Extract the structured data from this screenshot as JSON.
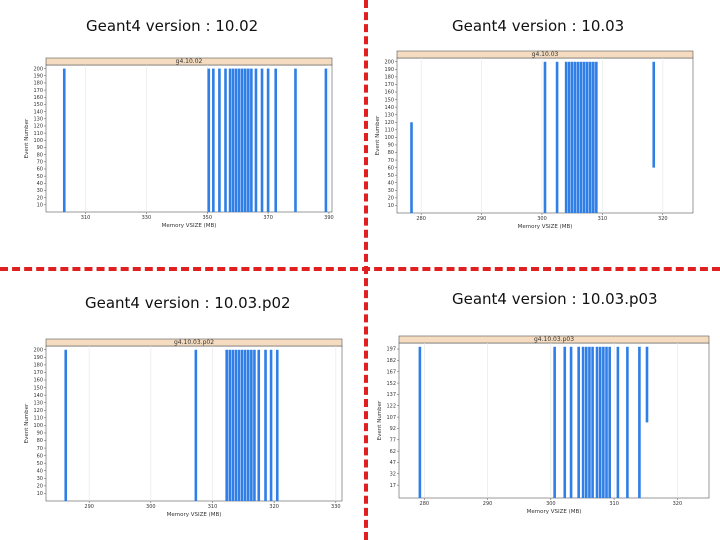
{
  "titles": {
    "tl": "Geant4 version : 10.02",
    "tr": "Geant4 version : 10.03",
    "bl": "Geant4 version : 10.03.p02",
    "br": "Geant4 version : 10.03.p03"
  },
  "colors": {
    "bar": "#2f7fe6",
    "strip": "#f5dcc0",
    "grid": "#e6e6e6",
    "divider": "#e02020"
  },
  "chart_data": [
    {
      "type": "bar",
      "strip_label": "g4.10.02",
      "xlabel": "Memory VSIZE (MB)",
      "ylabel": "Event Number",
      "xlim": [
        297,
        391
      ],
      "xticks": [
        310,
        330,
        350,
        370,
        390
      ],
      "ylim": [
        0,
        205
      ],
      "yticks": [
        10,
        20,
        30,
        40,
        50,
        60,
        70,
        80,
        90,
        100,
        110,
        120,
        130,
        140,
        150,
        160,
        170,
        180,
        190,
        200
      ],
      "grid": true,
      "segments": [
        {
          "x": 303,
          "y0": 0,
          "y1": 200
        },
        {
          "x": 350.5,
          "y0": 0,
          "y1": 200
        },
        {
          "x": 352,
          "y0": 0,
          "y1": 200
        },
        {
          "x": 354,
          "y0": 0,
          "y1": 200
        },
        {
          "x": 356,
          "y0": 0,
          "y1": 200
        },
        {
          "x": 357.5,
          "y0": 0,
          "y1": 200
        },
        {
          "x": 358.5,
          "y0": 0,
          "y1": 200
        },
        {
          "x": 359.5,
          "y0": 0,
          "y1": 200
        },
        {
          "x": 360.5,
          "y0": 0,
          "y1": 200
        },
        {
          "x": 361.5,
          "y0": 0,
          "y1": 200
        },
        {
          "x": 362.5,
          "y0": 0,
          "y1": 200
        },
        {
          "x": 363.5,
          "y0": 0,
          "y1": 200
        },
        {
          "x": 364.5,
          "y0": 0,
          "y1": 200
        },
        {
          "x": 366,
          "y0": 0,
          "y1": 200
        },
        {
          "x": 368,
          "y0": 0,
          "y1": 200
        },
        {
          "x": 370,
          "y0": 0,
          "y1": 200
        },
        {
          "x": 372.5,
          "y0": 0,
          "y1": 200
        },
        {
          "x": 379,
          "y0": 0,
          "y1": 200
        },
        {
          "x": 389,
          "y0": 0,
          "y1": 200
        }
      ]
    },
    {
      "type": "bar",
      "strip_label": "g4.10.03",
      "xlabel": "Memory VSIZE (MB)",
      "ylabel": "Event Number",
      "xlim": [
        276,
        325
      ],
      "xticks": [
        280,
        290,
        300,
        310,
        320
      ],
      "ylim": [
        0,
        205
      ],
      "yticks": [
        10,
        20,
        30,
        40,
        50,
        60,
        70,
        80,
        90,
        100,
        110,
        120,
        130,
        140,
        150,
        160,
        170,
        180,
        190,
        200
      ],
      "grid": true,
      "segments": [
        {
          "x": 278.4,
          "y0": 0,
          "y1": 120
        },
        {
          "x": 300.5,
          "y0": 0,
          "y1": 200
        },
        {
          "x": 302.5,
          "y0": 0,
          "y1": 200
        },
        {
          "x": 304,
          "y0": 0,
          "y1": 200
        },
        {
          "x": 304.5,
          "y0": 0,
          "y1": 200
        },
        {
          "x": 305,
          "y0": 0,
          "y1": 200
        },
        {
          "x": 305.5,
          "y0": 0,
          "y1": 200
        },
        {
          "x": 306,
          "y0": 0,
          "y1": 200
        },
        {
          "x": 306.5,
          "y0": 0,
          "y1": 200
        },
        {
          "x": 307,
          "y0": 0,
          "y1": 200
        },
        {
          "x": 307.5,
          "y0": 0,
          "y1": 200
        },
        {
          "x": 308,
          "y0": 0,
          "y1": 200
        },
        {
          "x": 308.5,
          "y0": 0,
          "y1": 200
        },
        {
          "x": 309,
          "y0": 0,
          "y1": 200
        },
        {
          "x": 318.5,
          "y0": 60,
          "y1": 200
        }
      ]
    },
    {
      "type": "bar",
      "strip_label": "g4.10.03.p02",
      "xlabel": "Memory VSIZE (MB)",
      "ylabel": "Event Number",
      "xlim": [
        283,
        331
      ],
      "xticks": [
        290,
        300,
        310,
        320,
        330
      ],
      "yticks_label_note": "",
      "ylim": [
        0,
        205
      ],
      "yticks": [
        10,
        20,
        30,
        40,
        50,
        60,
        70,
        80,
        90,
        100,
        110,
        120,
        130,
        140,
        150,
        160,
        170,
        180,
        190,
        200
      ],
      "grid": true,
      "segments": [
        {
          "x": 286.2,
          "y0": 0,
          "y1": 200
        },
        {
          "x": 307.3,
          "y0": 0,
          "y1": 200
        },
        {
          "x": 312.3,
          "y0": 0,
          "y1": 200
        },
        {
          "x": 312.8,
          "y0": 0,
          "y1": 200
        },
        {
          "x": 313.3,
          "y0": 0,
          "y1": 200
        },
        {
          "x": 313.8,
          "y0": 0,
          "y1": 200
        },
        {
          "x": 314.3,
          "y0": 0,
          "y1": 200
        },
        {
          "x": 314.8,
          "y0": 0,
          "y1": 200
        },
        {
          "x": 315.3,
          "y0": 0,
          "y1": 200
        },
        {
          "x": 315.8,
          "y0": 0,
          "y1": 200
        },
        {
          "x": 316.3,
          "y0": 0,
          "y1": 200
        },
        {
          "x": 316.8,
          "y0": 0,
          "y1": 200
        },
        {
          "x": 317.5,
          "y0": 0,
          "y1": 200
        },
        {
          "x": 318.6,
          "y0": 0,
          "y1": 200
        },
        {
          "x": 319.5,
          "y0": 0,
          "y1": 200
        },
        {
          "x": 320.5,
          "y0": 0,
          "y1": 200
        }
      ]
    },
    {
      "type": "bar",
      "strip_label": "g4.10.03.p03",
      "xlabel": "Memory VSIZE (MB)",
      "ylabel": "Event Number",
      "xlim": [
        276,
        325
      ],
      "xticks": [
        280,
        290,
        300,
        310,
        320
      ],
      "ylim": [
        0,
        205
      ],
      "yticks": [
        17,
        32,
        47,
        62,
        77,
        92,
        107,
        122,
        137,
        152,
        167,
        182,
        197
      ],
      "grid": true,
      "segments": [
        {
          "x": 279.3,
          "y0": 0,
          "y1": 200
        },
        {
          "x": 300.6,
          "y0": 0,
          "y1": 200
        },
        {
          "x": 302.2,
          "y0": 0,
          "y1": 200
        },
        {
          "x": 303.2,
          "y0": 0,
          "y1": 200
        },
        {
          "x": 304.4,
          "y0": 0,
          "y1": 200
        },
        {
          "x": 305.1,
          "y0": 0,
          "y1": 200
        },
        {
          "x": 305.6,
          "y0": 0,
          "y1": 200
        },
        {
          "x": 306.1,
          "y0": 0,
          "y1": 200
        },
        {
          "x": 306.6,
          "y0": 0,
          "y1": 200
        },
        {
          "x": 307.3,
          "y0": 0,
          "y1": 200
        },
        {
          "x": 307.8,
          "y0": 0,
          "y1": 200
        },
        {
          "x": 308.3,
          "y0": 0,
          "y1": 200
        },
        {
          "x": 308.8,
          "y0": 0,
          "y1": 200
        },
        {
          "x": 309.3,
          "y0": 0,
          "y1": 200
        },
        {
          "x": 310.6,
          "y0": 0,
          "y1": 200
        },
        {
          "x": 312.1,
          "y0": 0,
          "y1": 200
        },
        {
          "x": 314,
          "y0": 0,
          "y1": 200
        },
        {
          "x": 315.2,
          "y0": 100,
          "y1": 200
        }
      ]
    }
  ]
}
